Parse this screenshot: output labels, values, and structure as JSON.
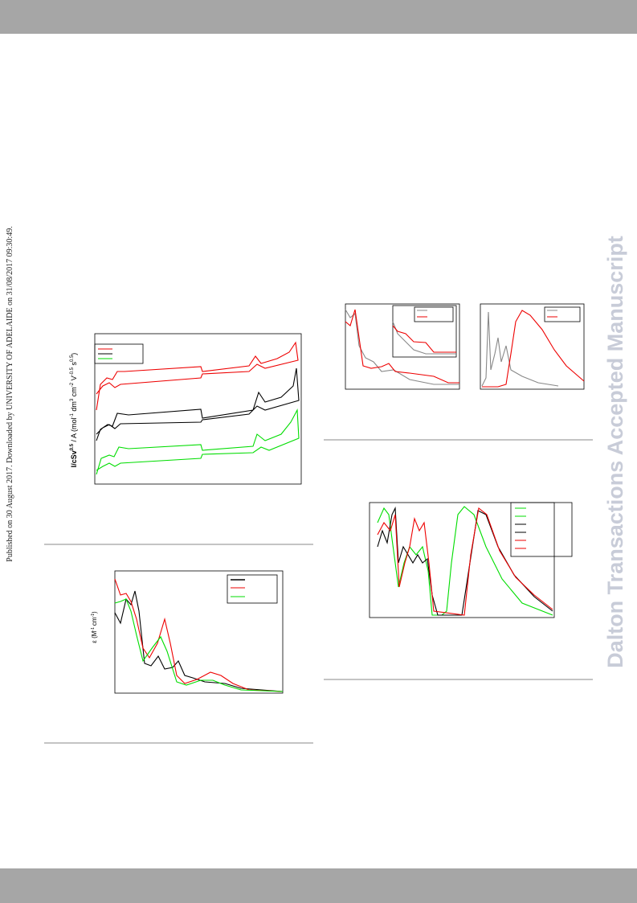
{
  "sidebar": {
    "published": "Published on 30 August 2017. Downloaded by UNIVERSITY OF ADELAIDE on 31/08/2017 09:30:49.",
    "watermark": "Dalton Transactions Accepted Manuscript"
  },
  "figures": [
    {
      "y_label_parts": [
        "I/cSv",
        "0.5",
        " / A (mol",
        "-1",
        " dm",
        "3",
        " cm",
        "-2",
        " V",
        "-0.5",
        " s",
        "0.5",
        ")"
      ]
    },
    {
      "y_label_parts": [
        "ε (M",
        "-1",
        "cm",
        "-1",
        ")"
      ]
    }
  ]
}
